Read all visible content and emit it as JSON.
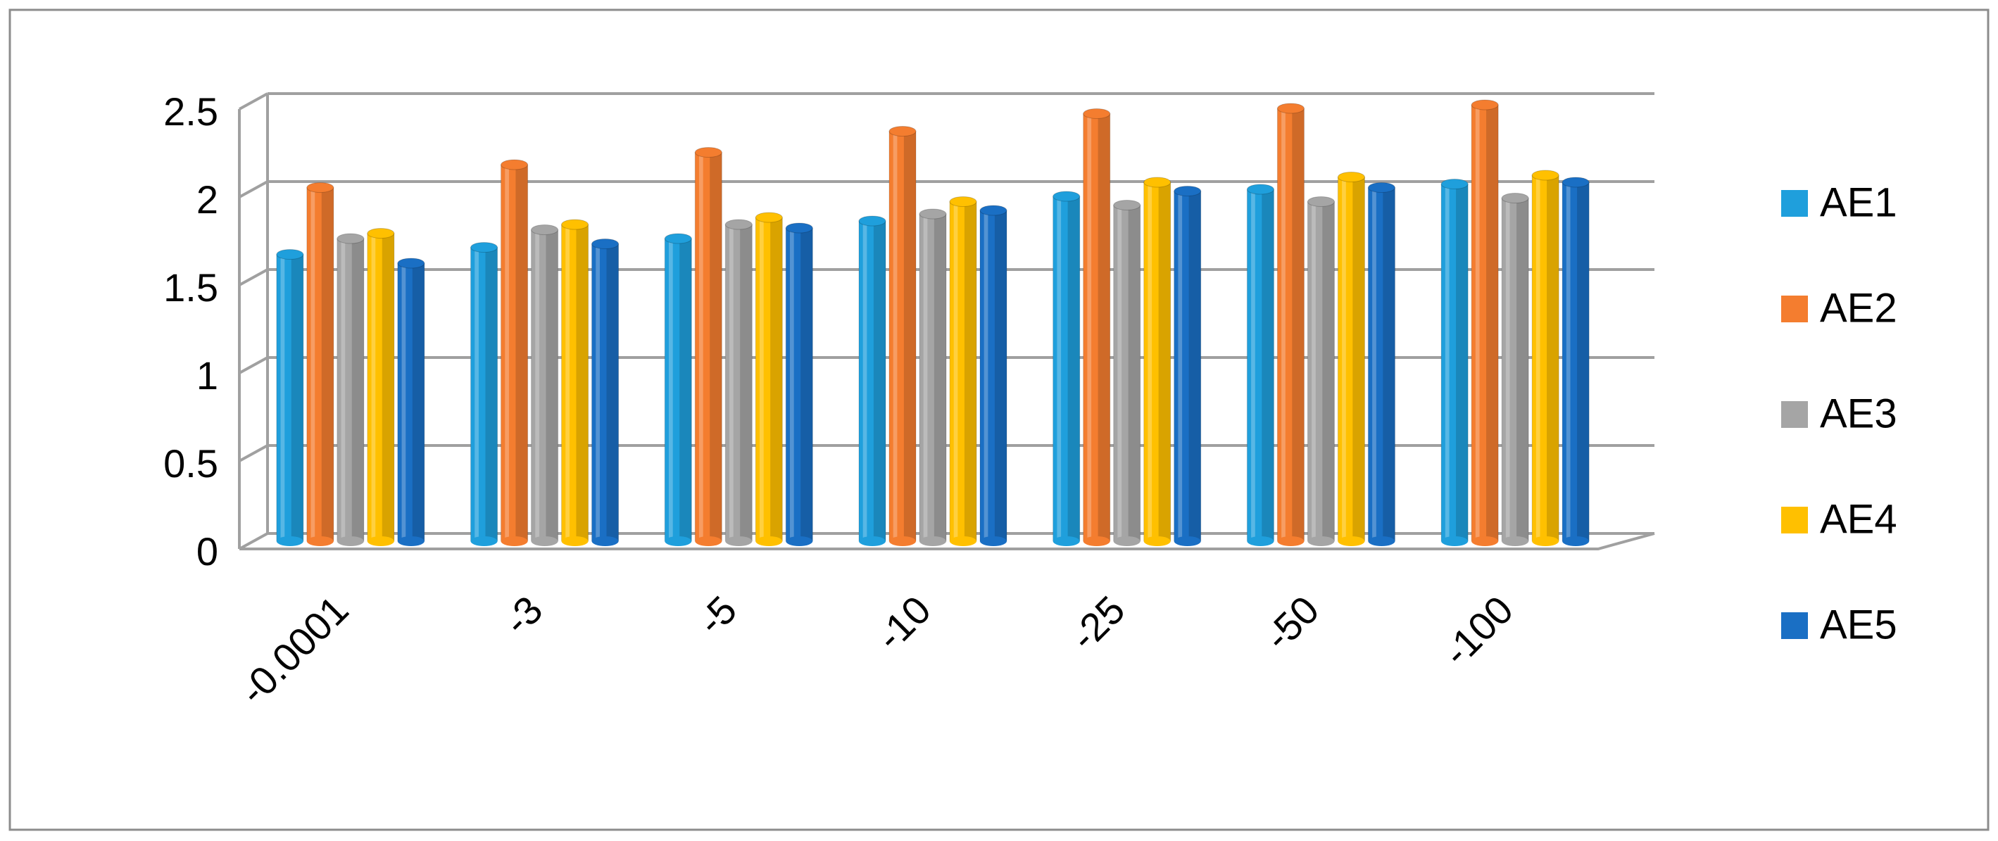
{
  "chart_data": {
    "type": "bar",
    "categories": [
      "-0.0001",
      "-3",
      "-5",
      "-10",
      "-25",
      "-50",
      "-100"
    ],
    "series": [
      {
        "name": "AE1",
        "color": "#1f9fdc",
        "values": [
          1.63,
          1.67,
          1.72,
          1.82,
          1.96,
          2.0,
          2.03
        ]
      },
      {
        "name": "AE2",
        "color": "#f47d2f",
        "values": [
          2.01,
          2.14,
          2.21,
          2.33,
          2.43,
          2.46,
          2.48
        ]
      },
      {
        "name": "AE3",
        "color": "#a5a5a5",
        "values": [
          1.72,
          1.77,
          1.8,
          1.86,
          1.91,
          1.93,
          1.95
        ]
      },
      {
        "name": "AE4",
        "color": "#ffc000",
        "values": [
          1.75,
          1.8,
          1.84,
          1.93,
          2.04,
          2.07,
          2.08
        ]
      },
      {
        "name": "AE5",
        "color": "#1a6fc4",
        "values": [
          1.58,
          1.69,
          1.78,
          1.88,
          1.99,
          2.01,
          2.04
        ]
      }
    ],
    "ylim": [
      0,
      2.5
    ],
    "yticks": [
      0,
      0.5,
      1,
      1.5,
      2,
      2.5
    ],
    "grid": true,
    "legend": "right"
  }
}
